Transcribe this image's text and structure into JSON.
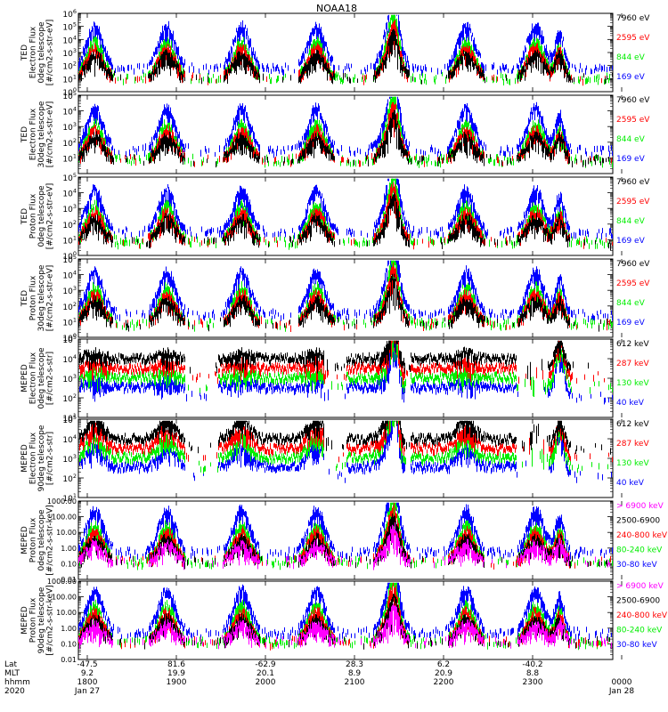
{
  "title": "NOAA18",
  "colors": {
    "blue": "#0000ff",
    "red": "#ff0000",
    "green": "#00ee00",
    "black": "#000000",
    "magenta": "#ff00ff"
  },
  "bottom_axis": {
    "row_labels": [
      "Lat",
      "MLT",
      "hhmm",
      "2020"
    ],
    "columns": [
      {
        "lat": "-47.5",
        "mlt": "9.2",
        "hhmm": "1800",
        "date": "Jan 27"
      },
      {
        "lat": "81.6",
        "mlt": "19.9",
        "hhmm": "1900",
        "date": ""
      },
      {
        "lat": "-62.9",
        "mlt": "20.1",
        "hhmm": "2000",
        "date": ""
      },
      {
        "lat": "28.3",
        "mlt": "8.9",
        "hhmm": "2100",
        "date": ""
      },
      {
        "lat": "6.2",
        "mlt": "20.9",
        "hhmm": "2200",
        "date": ""
      },
      {
        "lat": "-40.2",
        "mlt": "8.8",
        "hhmm": "2300",
        "date": ""
      },
      {
        "lat": "",
        "mlt": "",
        "hhmm": "0000",
        "date": "Jan 28"
      }
    ]
  },
  "chart_data": [
    {
      "type": "line",
      "ylabel": [
        "TED",
        "Electron Flux",
        "0deg telescope",
        "[#/cm2-s-str-eV]"
      ],
      "ylim": [
        1,
        1000000
      ],
      "log": true,
      "yticks": [
        {
          "exp": "0",
          "v": 1
        },
        {
          "exp": "1",
          "v": 10
        },
        {
          "exp": "2",
          "v": 100
        },
        {
          "exp": "3",
          "v": 1000
        },
        {
          "exp": "4",
          "v": 10000
        },
        {
          "exp": "5",
          "v": 100000
        },
        {
          "exp": "6",
          "v": 1000000
        }
      ],
      "legend": [
        {
          "name": "7960 eV",
          "color": "black"
        },
        {
          "name": "2595 eV",
          "color": "red"
        },
        {
          "name": "844 eV",
          "color": "green"
        },
        {
          "name": "169 eV",
          "color": "blue"
        }
      ]
    },
    {
      "type": "line",
      "ylabel": [
        "TED",
        "Electron Flux",
        "30deg telescope",
        "[#/cm2-s-str-eV]"
      ],
      "ylim": [
        1,
        100000
      ],
      "log": true,
      "yticks": [
        {
          "exp": "1",
          "v": 10
        },
        {
          "exp": "2",
          "v": 100
        },
        {
          "exp": "3",
          "v": 1000
        },
        {
          "exp": "4",
          "v": 10000
        },
        {
          "exp": "5",
          "v": 100000
        }
      ],
      "legend": [
        {
          "name": "7960 eV",
          "color": "black"
        },
        {
          "name": "2595 eV",
          "color": "red"
        },
        {
          "name": "844 eV",
          "color": "green"
        },
        {
          "name": "169 eV",
          "color": "blue"
        }
      ]
    },
    {
      "type": "line",
      "ylabel": [
        "TED",
        "Proton Flux",
        "0deg telescope",
        "[#/cm2-s-str-eV]"
      ],
      "ylim": [
        1,
        100000
      ],
      "log": true,
      "yticks": [
        {
          "exp": "0",
          "v": 1
        },
        {
          "exp": "1",
          "v": 10
        },
        {
          "exp": "2",
          "v": 100
        },
        {
          "exp": "3",
          "v": 1000
        },
        {
          "exp": "4",
          "v": 10000
        },
        {
          "exp": "5",
          "v": 100000
        }
      ],
      "legend": [
        {
          "name": "7960 eV",
          "color": "black"
        },
        {
          "name": "2595 eV",
          "color": "red"
        },
        {
          "name": "844 eV",
          "color": "green"
        },
        {
          "name": "169 eV",
          "color": "blue"
        }
      ]
    },
    {
      "type": "line",
      "ylabel": [
        "TED",
        "Proton Flux",
        "30deg telescope",
        "[#/cm2-s-str-eV]"
      ],
      "ylim": [
        1,
        100000
      ],
      "log": true,
      "yticks": [
        {
          "exp": "0",
          "v": 1
        },
        {
          "exp": "1",
          "v": 10
        },
        {
          "exp": "2",
          "v": 100
        },
        {
          "exp": "3",
          "v": 1000
        },
        {
          "exp": "4",
          "v": 10000
        },
        {
          "exp": "5",
          "v": 100000
        }
      ],
      "legend": [
        {
          "name": "7960 eV",
          "color": "black"
        },
        {
          "name": "2595 eV",
          "color": "red"
        },
        {
          "name": "844 eV",
          "color": "green"
        },
        {
          "name": "169 eV",
          "color": "blue"
        }
      ]
    },
    {
      "type": "line",
      "ylabel": [
        "MEPED",
        "Electron Flux",
        "0deg telescope",
        "[#/cm2-s-str]"
      ],
      "ylim": [
        10,
        100000
      ],
      "log": true,
      "yticks": [
        {
          "exp": "1",
          "v": 10
        },
        {
          "exp": "2",
          "v": 100
        },
        {
          "exp": "3",
          "v": 1000
        },
        {
          "exp": "4",
          "v": 10000
        },
        {
          "exp": "5",
          "v": 100000
        }
      ],
      "legend": [
        {
          "name": "612 keV",
          "color": "black"
        },
        {
          "name": "287 keV",
          "color": "red"
        },
        {
          "name": "130 keV",
          "color": "green"
        },
        {
          "name": "40 keV",
          "color": "blue"
        }
      ]
    },
    {
      "type": "line",
      "ylabel": [
        "MEPED",
        "Electron Flux",
        "90deg telescope",
        "[#/cm2-s-str]"
      ],
      "ylim": [
        10,
        100000
      ],
      "log": true,
      "yticks": [
        {
          "exp": "1",
          "v": 10
        },
        {
          "exp": "2",
          "v": 100
        },
        {
          "exp": "3",
          "v": 1000
        },
        {
          "exp": "4",
          "v": 10000
        },
        {
          "exp": "5",
          "v": 100000
        }
      ],
      "legend": [
        {
          "name": "612 keV",
          "color": "black"
        },
        {
          "name": "287 keV",
          "color": "red"
        },
        {
          "name": "130 keV",
          "color": "green"
        },
        {
          "name": "40 keV",
          "color": "blue"
        }
      ]
    },
    {
      "type": "line",
      "ylabel": [
        "MEPED",
        "Proton Flux",
        "0deg telescope",
        "[#/cm2-s-str-keV]"
      ],
      "ylim": [
        0.01,
        1000
      ],
      "log": true,
      "yticks": [
        {
          "label": "0.01",
          "v": 0.01
        },
        {
          "label": "0.10",
          "v": 0.1
        },
        {
          "label": "1.00",
          "v": 1
        },
        {
          "label": "10.00",
          "v": 10
        },
        {
          "label": "100.00",
          "v": 100
        },
        {
          "label": "1000.00",
          "v": 1000
        }
      ],
      "legend": [
        {
          "name": "> 6900 keV",
          "color": "magenta"
        },
        {
          "name": "2500-6900",
          "color": "black"
        },
        {
          "name": "240-800 keV",
          "color": "red"
        },
        {
          "name": "80-240 keV",
          "color": "green"
        },
        {
          "name": "30-80 keV",
          "color": "blue"
        }
      ]
    },
    {
      "type": "line",
      "ylabel": [
        "MEPED",
        "Proton Flux",
        "90deg telescope",
        "[#/cm2-s-str-keV]"
      ],
      "ylim": [
        0.01,
        1000
      ],
      "log": true,
      "yticks": [
        {
          "label": "0.01",
          "v": 0.01
        },
        {
          "label": "0.10",
          "v": 0.1
        },
        {
          "label": "1.00",
          "v": 1
        },
        {
          "label": "10.00",
          "v": 10
        },
        {
          "label": "100.00",
          "v": 100
        },
        {
          "label": "1000.00",
          "v": 1000
        }
      ],
      "legend": [
        {
          "name": "> 6900 keV",
          "color": "magenta"
        },
        {
          "name": "2500-6900",
          "color": "black"
        },
        {
          "name": "240-800 keV",
          "color": "red"
        },
        {
          "name": "80-240 keV",
          "color": "green"
        },
        {
          "name": "30-80 keV",
          "color": "blue"
        }
      ]
    }
  ]
}
